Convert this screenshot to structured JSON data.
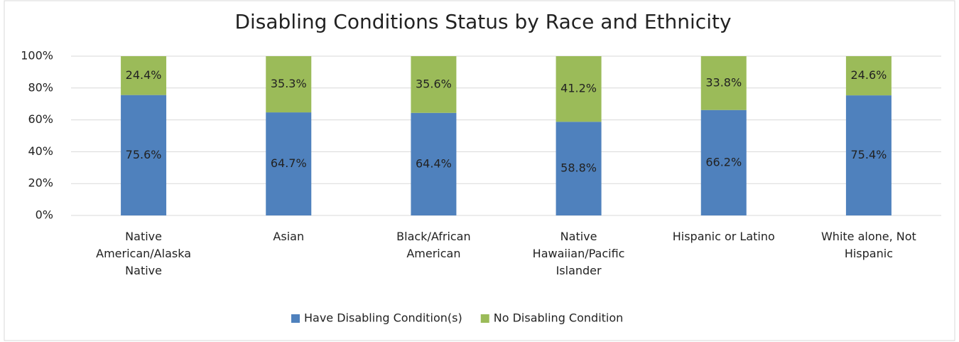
{
  "chart_data": {
    "type": "stacked_bar",
    "title": "Disabling Conditions Status by Race and Ethnicity",
    "categories": [
      "Native American/Alaska Native",
      "Asian",
      "Black/African American",
      "Native Hawaiian/Pacific Islander",
      "Hispanic or Latino",
      "White alone, Not Hispanic"
    ],
    "series": [
      {
        "name": "Have Disabling Condition(s)",
        "color": "#4f81bd",
        "values": [
          75.6,
          64.7,
          64.4,
          58.8,
          66.2,
          75.4
        ],
        "value_labels": [
          "75.6%",
          "64.7%",
          "64.4%",
          "58.8%",
          "66.2%",
          "75.4%"
        ]
      },
      {
        "name": "No Disabling Condition",
        "color": "#9bbb59",
        "values": [
          24.4,
          35.3,
          35.6,
          41.2,
          33.8,
          24.6
        ],
        "value_labels": [
          "24.4%",
          "35.3%",
          "35.6%",
          "41.2%",
          "33.8%",
          "24.6%"
        ]
      }
    ],
    "ylim": [
      0,
      100
    ],
    "yticks": [
      {
        "value": 0,
        "label": "0%"
      },
      {
        "value": 20,
        "label": "20%"
      },
      {
        "value": 40,
        "label": "40%"
      },
      {
        "value": 60,
        "label": "60%"
      },
      {
        "value": 80,
        "label": "80%"
      },
      {
        "value": 100,
        "label": "100%"
      }
    ],
    "grid": true,
    "legend": "bottom"
  }
}
